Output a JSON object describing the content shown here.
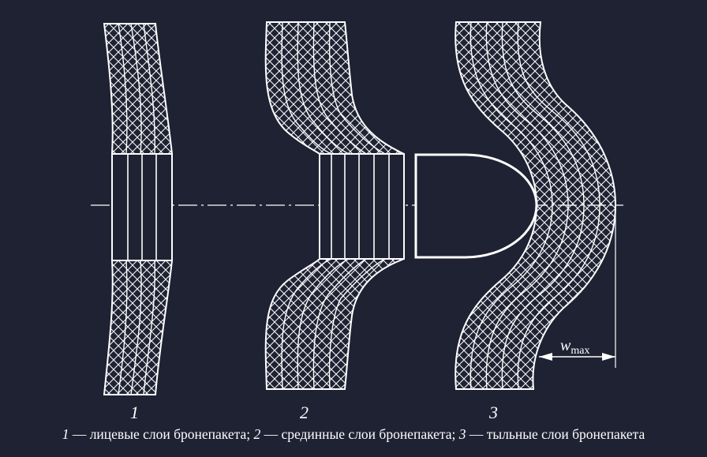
{
  "figure": {
    "background": "#1f2233",
    "stroke_color": "#ffffff",
    "labels": {
      "pack1": "1",
      "pack2": "2",
      "pack3": "3"
    },
    "deflection": {
      "symbol": "w",
      "subscript": "max"
    }
  },
  "caption": {
    "num1": "1",
    "text1": " — лицевые слои бронепакета; ",
    "num2": "2",
    "text2": " — срединные слои бронепакета; ",
    "num3": "3",
    "text3": " — тыльные слои бронепакета"
  }
}
